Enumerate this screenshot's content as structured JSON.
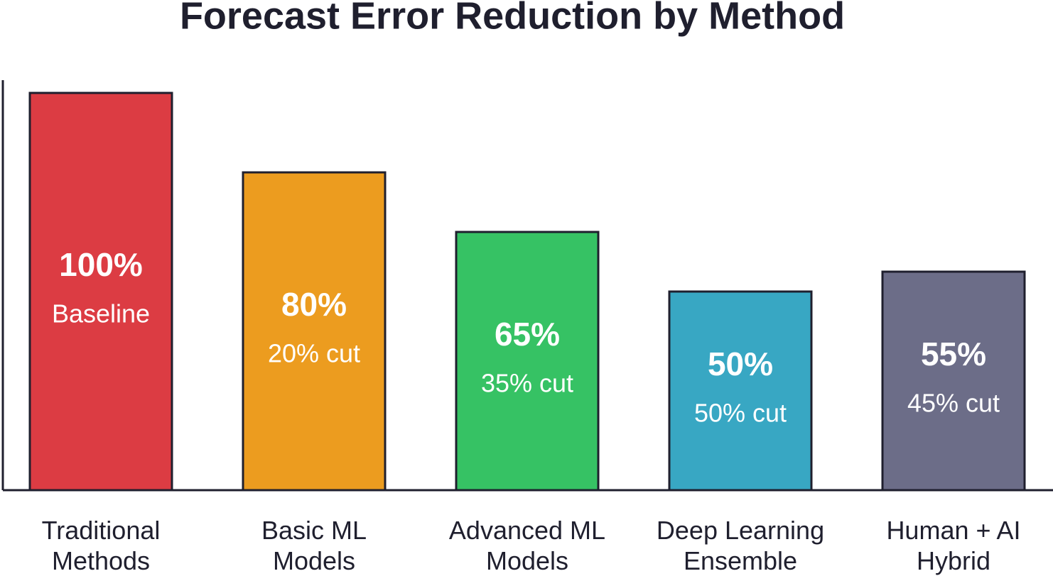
{
  "chart_data": {
    "type": "bar",
    "title": "Forecast Error Reduction by Method",
    "categories": [
      "Traditional\nMethods",
      "Basic ML\nModels",
      "Advanced ML\nModels",
      "Deep Learning\nEnsemble",
      "Human + AI\nHybrid"
    ],
    "values": [
      100,
      80,
      65,
      50,
      55
    ],
    "value_labels": [
      "100%",
      "80%",
      "65%",
      "50%",
      "55%"
    ],
    "notes": [
      "Baseline",
      "20% cut",
      "35% cut",
      "50% cut",
      "45% cut"
    ],
    "colors": [
      "#dc3c43",
      "#ec9c1f",
      "#36c264",
      "#38a7c3",
      "#6c6d88"
    ],
    "ylim": [
      0,
      100
    ]
  }
}
